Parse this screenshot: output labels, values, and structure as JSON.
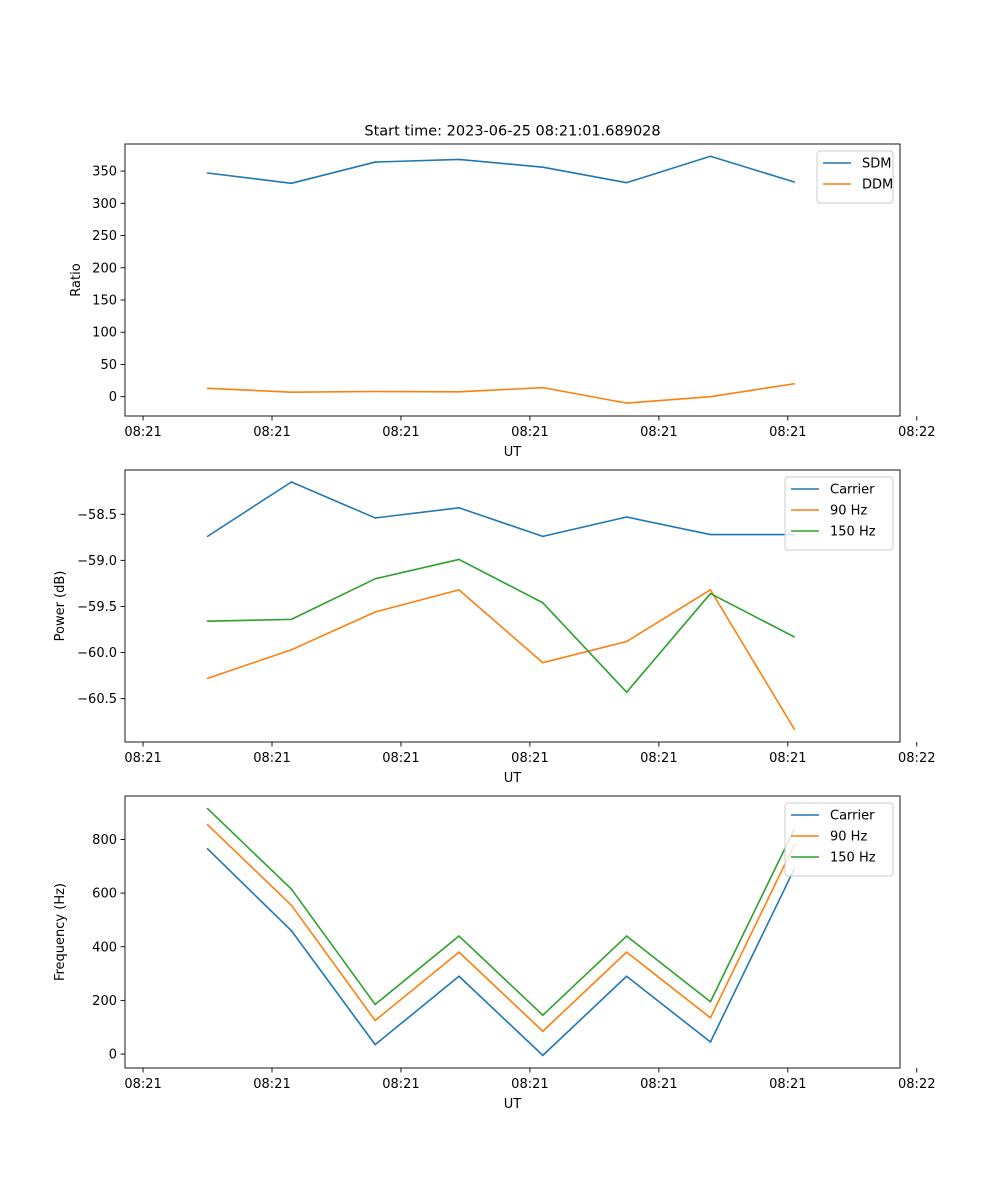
{
  "figure_title": "Start time: 2023-06-25 08:21:01.689028",
  "colors": {
    "blue": "#1f77b4",
    "orange": "#ff7f0e",
    "green": "#2ca02c"
  },
  "chart_data": [
    {
      "type": "line",
      "xlabel": "UT",
      "ylabel": "Ratio",
      "x_tick_labels": [
        "08:21",
        "08:21",
        "08:21",
        "08:21",
        "08:21",
        "08:21",
        "08:22"
      ],
      "x_points": [
        0.5,
        1.15,
        1.8,
        2.45,
        3.1,
        3.75,
        4.4,
        5.05
      ],
      "x_ticks": [
        0,
        1,
        2,
        3,
        4,
        5,
        6
      ],
      "xlim": [
        -0.14,
        5.87
      ],
      "ylim": [
        -30,
        392
      ],
      "y_ticks": [
        0,
        50,
        100,
        150,
        200,
        250,
        300,
        350
      ],
      "y_tick_labels": [
        "0",
        "50",
        "100",
        "150",
        "200",
        "250",
        "300",
        "350"
      ],
      "legend_position": "top-right",
      "series": [
        {
          "name": "SDM",
          "color": "#1f77b4",
          "values": [
            347,
            331,
            364,
            368,
            356,
            332,
            373,
            333
          ]
        },
        {
          "name": "DDM",
          "color": "#ff7f0e",
          "values": [
            13,
            7,
            8,
            7.5,
            14,
            -10,
            0,
            20
          ]
        }
      ]
    },
    {
      "type": "line",
      "xlabel": "UT",
      "ylabel": "Power (dB)",
      "x_tick_labels": [
        "08:21",
        "08:21",
        "08:21",
        "08:21",
        "08:21",
        "08:21",
        "08:22"
      ],
      "x_points": [
        0.5,
        1.15,
        1.8,
        2.45,
        3.1,
        3.75,
        4.4,
        5.05
      ],
      "x_ticks": [
        0,
        1,
        2,
        3,
        4,
        5,
        6
      ],
      "xlim": [
        -0.14,
        5.87
      ],
      "ylim": [
        -60.97,
        -58.02
      ],
      "y_ticks": [
        -60.5,
        -60.0,
        -59.5,
        -59.0,
        -58.5
      ],
      "y_tick_labels": [
        "−60.5",
        "−60.0",
        "−59.5",
        "−59.0",
        "−58.5"
      ],
      "legend_position": "top-right",
      "series": [
        {
          "name": "Carrier",
          "color": "#1f77b4",
          "values": [
            -58.74,
            -58.15,
            -58.54,
            -58.43,
            -58.74,
            -58.53,
            -58.72,
            -58.72
          ]
        },
        {
          "name": "90 Hz",
          "color": "#ff7f0e",
          "values": [
            -60.28,
            -59.97,
            -59.56,
            -59.32,
            -60.11,
            -59.88,
            -59.32,
            -60.83
          ]
        },
        {
          "name": "150 Hz",
          "color": "#2ca02c",
          "values": [
            -59.66,
            -59.64,
            -59.2,
            -58.99,
            -59.46,
            -60.43,
            -59.36,
            -59.83
          ]
        }
      ]
    },
    {
      "type": "line",
      "xlabel": "UT",
      "ylabel": "Frequency (Hz)",
      "x_tick_labels": [
        "08:21",
        "08:21",
        "08:21",
        "08:21",
        "08:21",
        "08:21",
        "08:22"
      ],
      "x_points": [
        0.5,
        1.15,
        1.8,
        2.45,
        3.1,
        3.75,
        4.4,
        5.05
      ],
      "x_ticks": [
        0,
        1,
        2,
        3,
        4,
        5,
        6
      ],
      "xlim": [
        -0.14,
        5.87
      ],
      "ylim": [
        -52,
        962
      ],
      "y_ticks": [
        0,
        200,
        400,
        600,
        800
      ],
      "y_tick_labels": [
        "0",
        "200",
        "400",
        "600",
        "800"
      ],
      "legend_position": "top-right",
      "series": [
        {
          "name": "Carrier",
          "color": "#1f77b4",
          "values": [
            765,
            460,
            35,
            290,
            -5,
            290,
            45,
            690
          ]
        },
        {
          "name": "90 Hz",
          "color": "#ff7f0e",
          "values": [
            855,
            555,
            125,
            380,
            85,
            380,
            135,
            780
          ]
        },
        {
          "name": "150 Hz",
          "color": "#2ca02c",
          "values": [
            915,
            615,
            185,
            440,
            145,
            440,
            195,
            838
          ]
        }
      ]
    }
  ]
}
